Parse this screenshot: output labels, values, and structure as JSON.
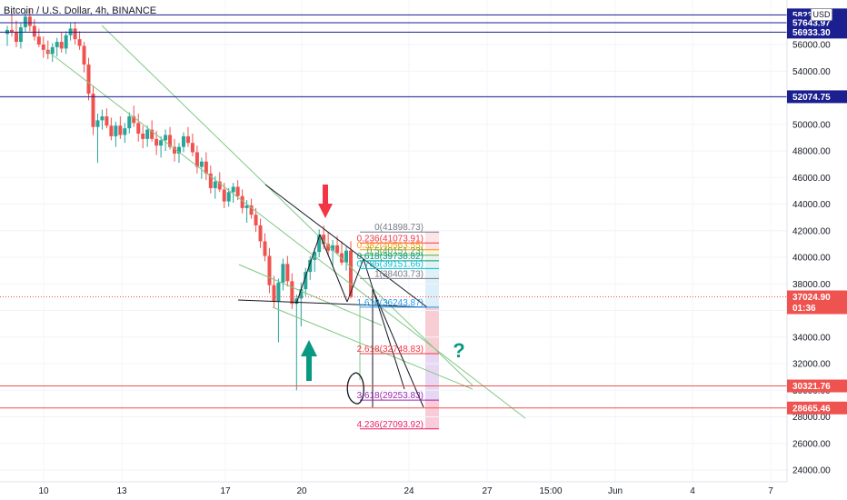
{
  "chart_data": {
    "type": "candlestick",
    "title": "Bitcoin / U.S. Dollar, 4h, BINANCE",
    "currency": "USD",
    "ylim": [
      23000,
      59000
    ],
    "y_ticks": [
      24000,
      26000,
      28000,
      30000,
      32000,
      34000,
      36000,
      38000,
      40000,
      42000,
      44000,
      46000,
      48000,
      50000,
      52000,
      54000,
      56000
    ],
    "y_tick_labels": [
      "24000.00",
      "26000.00",
      "28000.00",
      "30000.00",
      "32000.00",
      "34000.00",
      "36000.00",
      "38000.00",
      "40000.00",
      "42000.00",
      "44000.00",
      "46000.00",
      "48000.00",
      "50000.00",
      "52000.00",
      "54000.00",
      "56000.00"
    ],
    "x_ticks": [
      "10",
      "13",
      "17",
      "20",
      "24",
      "27",
      "15:00",
      "Jun",
      "4",
      "7"
    ],
    "price_tags": [
      {
        "value": 58232.48,
        "label": "58232.48",
        "color": "#1b1f8f"
      },
      {
        "value": 57643.97,
        "label": "57643.97",
        "color": "#1b1f8f"
      },
      {
        "value": 56933.3,
        "label": "56933.30",
        "color": "#1b1f8f"
      },
      {
        "value": 52074.75,
        "label": "52074.75",
        "color": "#1b1f8f"
      },
      {
        "value": 37024.9,
        "label": "37024.90",
        "sublabel": "01:36",
        "color": "#ef5350"
      },
      {
        "value": 30321.76,
        "label": "30321.76",
        "color": "#ef5350"
      },
      {
        "value": 28665.46,
        "label": "28665.46",
        "color": "#ef5350"
      }
    ],
    "fib_levels": [
      {
        "ratio": "0",
        "price": 41898.73,
        "label": "0(41898.73)",
        "color": "#787b86"
      },
      {
        "ratio": "0.236",
        "price": 41073.91,
        "label": "0.236(41073.91)",
        "color": "#f23645"
      },
      {
        "ratio": "0.382",
        "price": 40563.55,
        "label": "0.382(40563.55)",
        "color": "#ff9800"
      },
      {
        "ratio": "0.5",
        "price": 40151.23,
        "label": "0.5(40151.23)",
        "color": "#4caf50"
      },
      {
        "ratio": "0.618",
        "price": 39738.82,
        "label": "0.618(39738.82)",
        "color": "#089981"
      },
      {
        "ratio": "0.786",
        "price": 39151.66,
        "label": "0.786(39151.66)",
        "color": "#00bcd4"
      },
      {
        "ratio": "1",
        "price": 38403.73,
        "label": "1(38403.73)",
        "color": "#787b86"
      },
      {
        "ratio": "1.618",
        "price": 36243.87,
        "label": "1.618(36243.87)",
        "color": "#2196f3"
      },
      {
        "ratio": "2.618",
        "price": 32748.83,
        "label": "2.618(32748.83)",
        "color": "#f23645"
      },
      {
        "ratio": "3.618",
        "price": 29253.83,
        "label": "3.618(29253.83)",
        "color": "#9c27b0"
      },
      {
        "ratio": "4.236",
        "price": 27093.92,
        "label": "4.236(27093.92)",
        "color": "#e91e63"
      }
    ],
    "candles": [
      [
        56800,
        57400,
        55900,
        57100
      ],
      [
        57100,
        58400,
        56600,
        56900
      ],
      [
        56900,
        57800,
        55800,
        56200
      ],
      [
        56200,
        57600,
        55700,
        57300
      ],
      [
        57300,
        58500,
        56900,
        58100
      ],
      [
        58100,
        58700,
        57000,
        57400
      ],
      [
        57400,
        57900,
        56300,
        56600
      ],
      [
        56600,
        57200,
        55800,
        56000
      ],
      [
        56000,
        56600,
        55000,
        55600
      ],
      [
        55600,
        56300,
        54900,
        55300
      ],
      [
        55300,
        56100,
        54700,
        55800
      ],
      [
        55800,
        56500,
        55100,
        56200
      ],
      [
        56200,
        56900,
        55400,
        55700
      ],
      [
        55700,
        57000,
        55300,
        56700
      ],
      [
        56700,
        57600,
        56300,
        57200
      ],
      [
        57200,
        57700,
        56000,
        56400
      ],
      [
        56400,
        57000,
        55600,
        55900
      ],
      [
        55900,
        56200,
        53900,
        54500
      ],
      [
        54500,
        55000,
        51800,
        52300
      ],
      [
        52300,
        52900,
        49200,
        49800
      ],
      [
        49800,
        50800,
        47100,
        50300
      ],
      [
        50300,
        51100,
        49600,
        50600
      ],
      [
        50600,
        51200,
        49700,
        49900
      ],
      [
        49900,
        50500,
        48800,
        49100
      ],
      [
        49100,
        50200,
        48300,
        49900
      ],
      [
        49900,
        50600,
        48900,
        49200
      ],
      [
        49200,
        50100,
        48600,
        49700
      ],
      [
        49700,
        50900,
        49300,
        50600
      ],
      [
        50600,
        51400,
        49800,
        50100
      ],
      [
        50100,
        50800,
        48700,
        49300
      ],
      [
        49300,
        49900,
        48200,
        48900
      ],
      [
        48900,
        49900,
        48300,
        49600
      ],
      [
        49600,
        50300,
        48700,
        48900
      ],
      [
        48900,
        49500,
        47700,
        48400
      ],
      [
        48400,
        49100,
        47500,
        48800
      ],
      [
        48800,
        49600,
        48000,
        49200
      ],
      [
        49200,
        49800,
        48100,
        48300
      ],
      [
        48300,
        48900,
        47200,
        47800
      ],
      [
        47800,
        48600,
        47100,
        48300
      ],
      [
        48300,
        49400,
        47900,
        49100
      ],
      [
        49100,
        49800,
        48300,
        48600
      ],
      [
        48600,
        49300,
        47600,
        47900
      ],
      [
        47900,
        48400,
        46300,
        46800
      ],
      [
        46800,
        47500,
        45900,
        47200
      ],
      [
        47200,
        47900,
        45800,
        46300
      ],
      [
        46300,
        46900,
        44800,
        45200
      ],
      [
        45200,
        46100,
        44400,
        45700
      ],
      [
        45700,
        46400,
        44900,
        45100
      ],
      [
        45100,
        45600,
        43700,
        44200
      ],
      [
        44200,
        45200,
        43800,
        44900
      ],
      [
        44900,
        45600,
        44100,
        45300
      ],
      [
        45300,
        45800,
        44300,
        44600
      ],
      [
        44600,
        45100,
        43300,
        43700
      ],
      [
        43700,
        44300,
        42600,
        43900
      ],
      [
        43900,
        44400,
        42900,
        43200
      ],
      [
        43200,
        43700,
        41900,
        42400
      ],
      [
        42400,
        42900,
        40700,
        41200
      ],
      [
        41200,
        41800,
        39700,
        40100
      ],
      [
        40100,
        40700,
        37300,
        37900
      ],
      [
        37900,
        38600,
        36200,
        36700
      ],
      [
        36700,
        38400,
        33600,
        38100
      ],
      [
        38100,
        39900,
        37500,
        39500
      ],
      [
        39500,
        40100,
        37800,
        38200
      ],
      [
        38200,
        38800,
        36100,
        36500
      ],
      [
        36500,
        37200,
        30000,
        36900
      ],
      [
        36900,
        38100,
        34800,
        37600
      ],
      [
        37600,
        39200,
        37100,
        38900
      ],
      [
        38900,
        40100,
        38300,
        39800
      ],
      [
        39800,
        40700,
        38900,
        40400
      ],
      [
        40400,
        42100,
        40000,
        41700
      ],
      [
        41700,
        42400,
        40600,
        41000
      ],
      [
        41000,
        41900,
        40100,
        40500
      ],
      [
        40500,
        41300,
        39300,
        40900
      ],
      [
        40900,
        41600,
        40200,
        40300
      ],
      [
        40300,
        41200,
        39400,
        39600
      ],
      [
        39600,
        40800,
        39000,
        40500
      ],
      [
        40500,
        41200,
        36900,
        37024
      ]
    ],
    "annotations": [
      {
        "type": "arrow-down",
        "color": "#f23645"
      },
      {
        "type": "arrow-up",
        "color": "#089981"
      },
      {
        "type": "question-mark",
        "text": "?",
        "color": "#089981"
      }
    ]
  }
}
